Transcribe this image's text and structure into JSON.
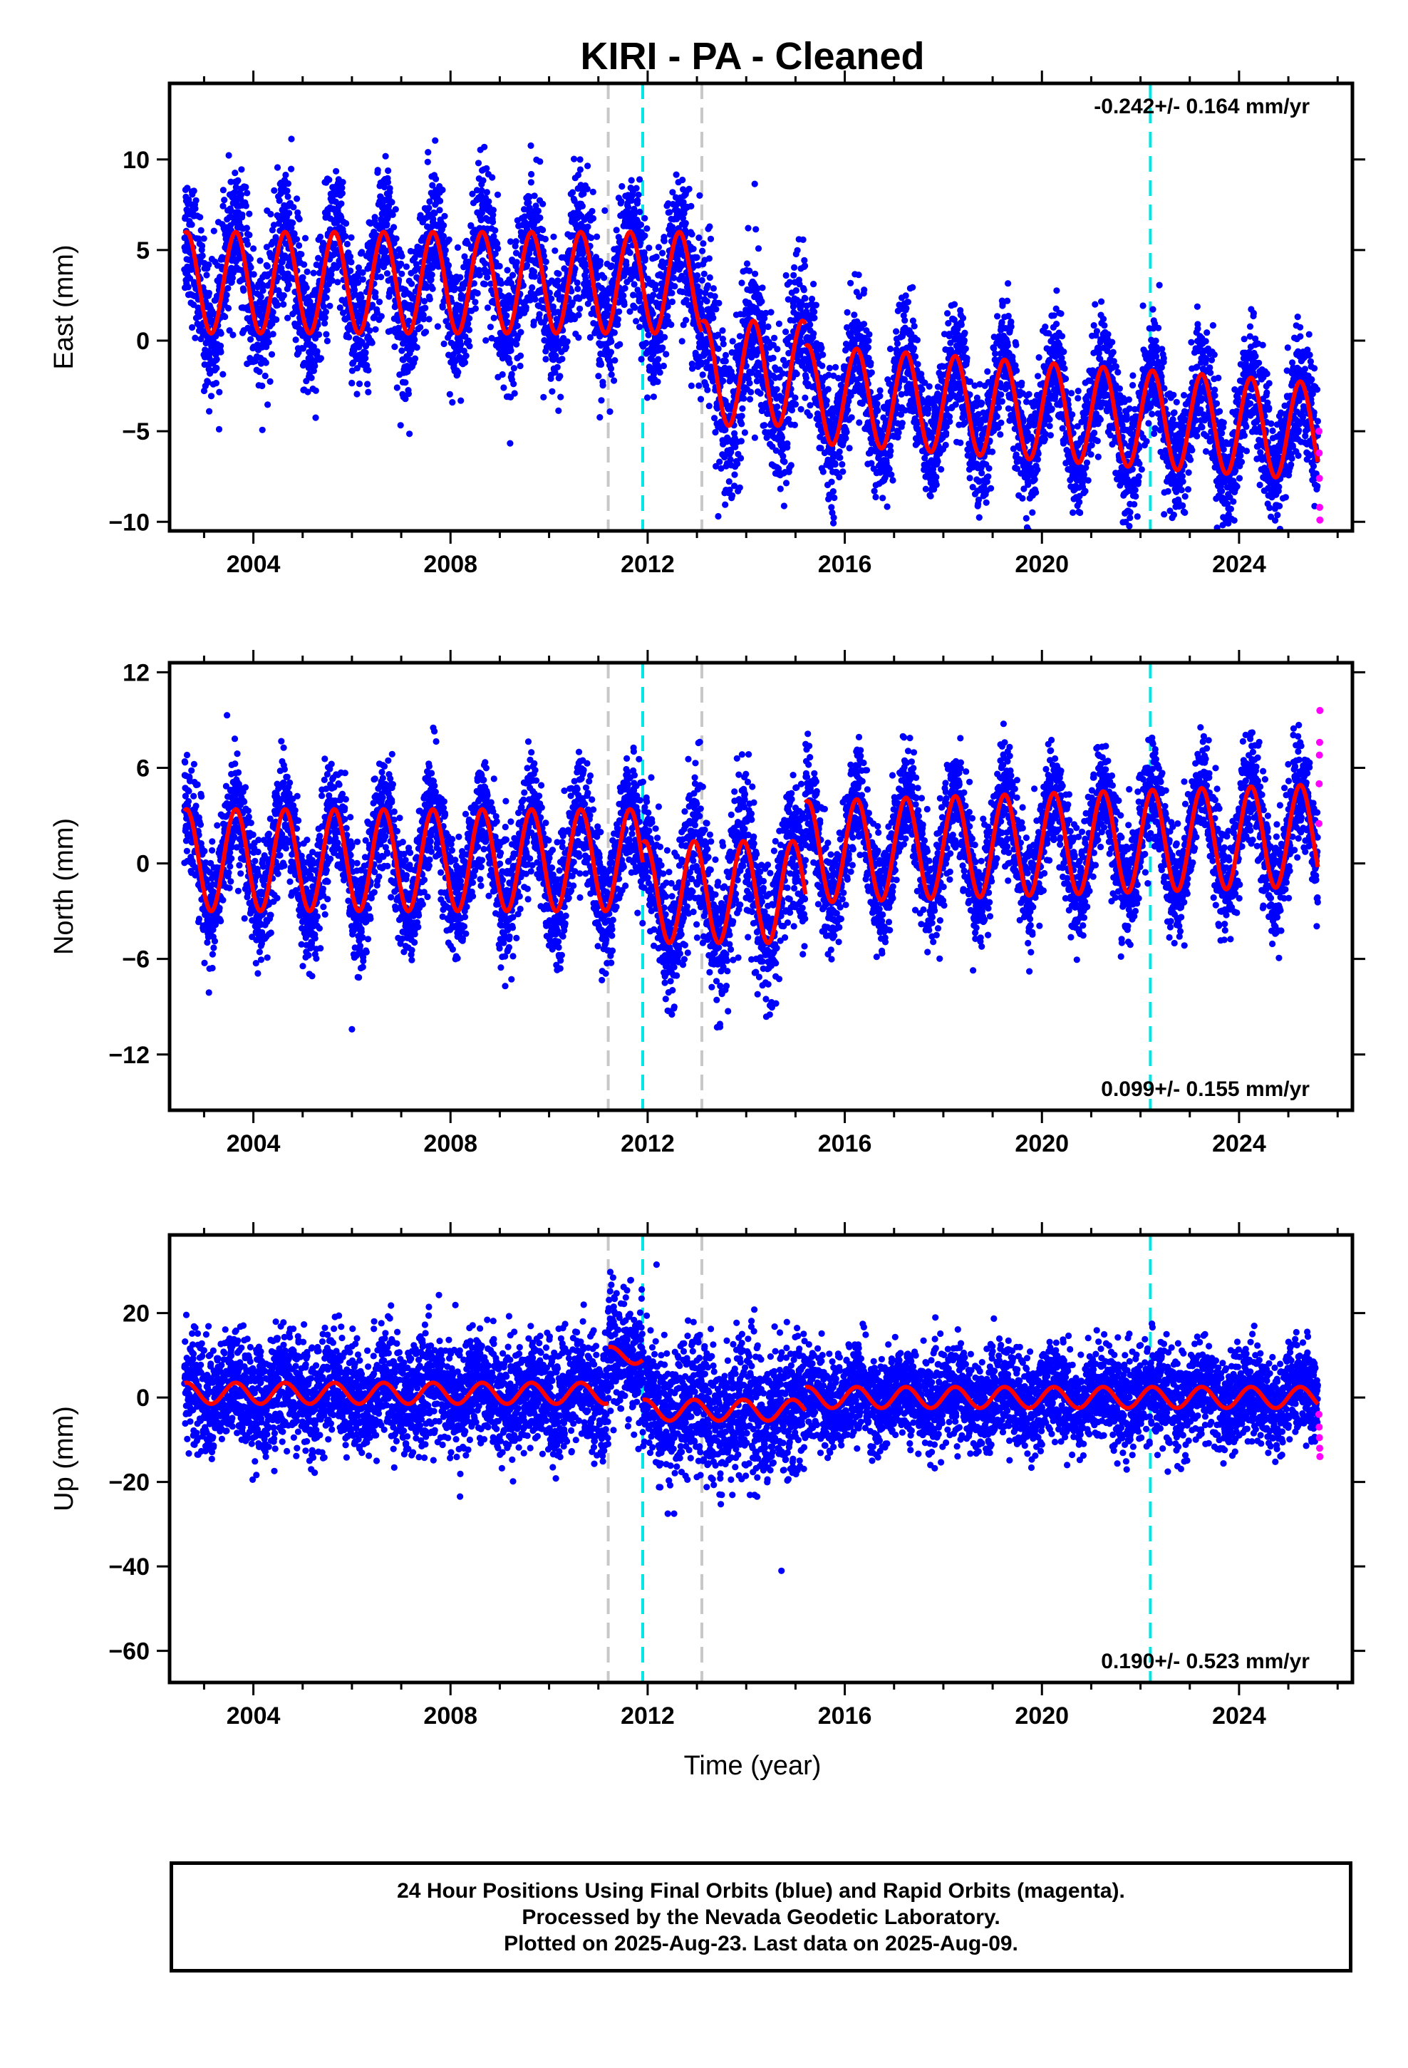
{
  "title": "KIRI  - PA - Cleaned",
  "xlabel": "Time (year)",
  "footer": {
    "line1": "24 Hour Positions Using Final Orbits (blue) and Rapid Orbits (magenta).",
    "line2": "Processed by the Nevada Geodetic Laboratory.",
    "line3": "Plotted on 2025-Aug-23. Last data on 2025-Aug-09."
  },
  "colors": {
    "final_orbits": "#0000ff",
    "rapid_orbits": "#ff00ff",
    "model": "#ff0000",
    "antenna_change": "#c8c8c8",
    "earthquake": "#00e5e5"
  },
  "chart_data": [
    {
      "type": "scatter",
      "ylabel": "East (mm)",
      "rate_text": "-0.242+/- 0.164 mm/yr",
      "xlim": [
        2002.3,
        2026.3
      ],
      "ylim": [
        -10.5,
        14.2
      ],
      "xticks": [
        2004,
        2008,
        2012,
        2016,
        2020,
        2024
      ],
      "yticks": [
        -10,
        -5,
        0,
        5,
        10
      ],
      "gray_lines": [
        2011.2,
        2013.1
      ],
      "cyan_lines": [
        2011.9,
        2022.2
      ],
      "series": [
        {
          "start": 2002.6,
          "end": 2013.1,
          "offset": 3.2,
          "trend": 0.0,
          "amp": 2.8,
          "spread": 1.9
        },
        {
          "start": 2013.1,
          "end": 2015.2,
          "offset": -1.8,
          "trend": 0.0,
          "amp": 2.9,
          "spread": 2.3
        },
        {
          "start": 2015.2,
          "end": 2025.6,
          "offset": -2.7,
          "trend": -0.2,
          "amp": 2.7,
          "spread": 1.6
        }
      ],
      "rapid": [
        -5.0,
        -6.2,
        -7.6,
        -9.2,
        -9.9
      ]
    },
    {
      "type": "scatter",
      "ylabel": "North (mm)",
      "rate_text": "0.099+/- 0.155 mm/yr",
      "xlim": [
        2002.3,
        2026.3
      ],
      "ylim": [
        -15.5,
        12.6
      ],
      "xticks": [
        2004,
        2008,
        2012,
        2016,
        2020,
        2024
      ],
      "yticks": [
        -12,
        -6,
        0,
        6,
        12
      ],
      "gray_lines": [
        2011.2,
        2013.1
      ],
      "cyan_lines": [
        2011.9,
        2022.2
      ],
      "series": [
        {
          "start": 2002.6,
          "end": 2011.9,
          "offset": 0.2,
          "trend": 0.0,
          "amp": 3.2,
          "spread": 1.8
        },
        {
          "start": 2011.9,
          "end": 2015.2,
          "offset": -1.8,
          "trend": 0.0,
          "amp": 3.2,
          "spread": 2.2
        },
        {
          "start": 2015.2,
          "end": 2025.6,
          "offset": 0.6,
          "trend": 0.1,
          "amp": 3.2,
          "spread": 1.7
        }
      ],
      "rapid": [
        2.5,
        5.0,
        6.8,
        7.6,
        9.6
      ]
    },
    {
      "type": "scatter",
      "ylabel": "Up (mm)",
      "rate_text": "0.190+/- 0.523 mm/yr",
      "xlim": [
        2002.3,
        2026.3
      ],
      "ylim": [
        -67.5,
        38.5
      ],
      "xticks": [
        2004,
        2008,
        2012,
        2016,
        2020,
        2024
      ],
      "yticks": [
        -60,
        -40,
        -20,
        0,
        20
      ],
      "gray_lines": [
        2011.2,
        2013.1
      ],
      "cyan_lines": [
        2011.9,
        2022.2
      ],
      "series": [
        {
          "start": 2002.6,
          "end": 2011.2,
          "offset": 1.0,
          "trend": 0.0,
          "amp": 2.5,
          "spread": 6.5
        },
        {
          "start": 2011.2,
          "end": 2011.9,
          "offset": 10.0,
          "trend": 0.0,
          "amp": 2.0,
          "spread": 7.0
        },
        {
          "start": 2011.9,
          "end": 2015.2,
          "offset": -3.0,
          "trend": 0.0,
          "amp": 2.5,
          "spread": 8.0
        },
        {
          "start": 2015.2,
          "end": 2025.6,
          "offset": 0.0,
          "trend": 0.0,
          "amp": 2.5,
          "spread": 5.5
        }
      ],
      "rapid": [
        -4.0,
        -7.0,
        -9.5,
        -12.0,
        -14.0
      ]
    }
  ]
}
